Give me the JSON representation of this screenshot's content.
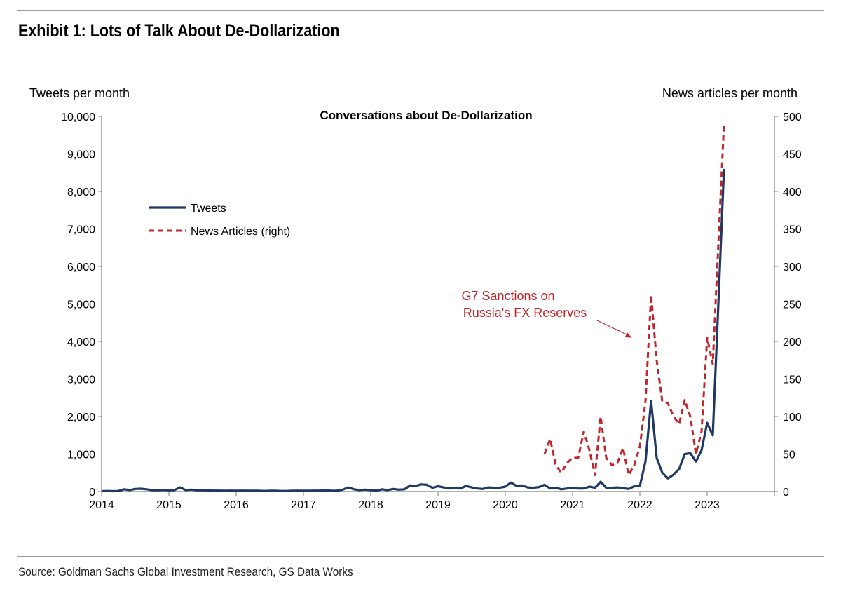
{
  "header": {
    "title": "Exhibit 1: Lots of Talk About De-Dollarization"
  },
  "footer": {
    "source": "Source: Goldman Sachs Global Investment Research, GS Data Works"
  },
  "chart_data": {
    "type": "line",
    "title": "Conversations about De-Dollarization",
    "ylabel_left": "Tweets per month",
    "ylabel_right": "News articles per month",
    "xlim": [
      2014,
      2024
    ],
    "ylim_left": [
      0,
      10000
    ],
    "ylim_right": [
      0,
      500
    ],
    "x_ticks": [
      "2014",
      "2015",
      "2016",
      "2017",
      "2018",
      "2019",
      "2020",
      "2021",
      "2022",
      "2023"
    ],
    "y_ticks_left": [
      "0",
      "1,000",
      "2,000",
      "3,000",
      "4,000",
      "5,000",
      "6,000",
      "7,000",
      "8,000",
      "9,000",
      "10,000"
    ],
    "y_ticks_right": [
      "0",
      "50",
      "100",
      "150",
      "200",
      "250",
      "300",
      "350",
      "400",
      "450",
      "500"
    ],
    "grid": false,
    "legend_position": "upper-left",
    "colors": {
      "tweets": "#1f3864",
      "news": "#c0272d",
      "annotation": "#c0272d"
    },
    "annotation": {
      "lines": [
        "G7 Sanctions on",
        "Russia's FX Reserves"
      ],
      "x": 2021.88,
      "y_right": 205
    },
    "series": [
      {
        "name": "Tweets",
        "axis": "left",
        "style": "solid",
        "x": [
          2014.0,
          2014.083,
          2014.167,
          2014.25,
          2014.333,
          2014.417,
          2014.5,
          2014.583,
          2014.667,
          2014.75,
          2014.833,
          2014.917,
          2015.0,
          2015.083,
          2015.167,
          2015.25,
          2015.333,
          2015.417,
          2015.5,
          2015.583,
          2015.667,
          2015.75,
          2015.833,
          2015.917,
          2016.0,
          2016.083,
          2016.167,
          2016.25,
          2016.333,
          2016.417,
          2016.5,
          2016.583,
          2016.667,
          2016.75,
          2016.833,
          2016.917,
          2017.0,
          2017.083,
          2017.167,
          2017.25,
          2017.333,
          2017.417,
          2017.5,
          2017.583,
          2017.667,
          2017.75,
          2017.833,
          2017.917,
          2018.0,
          2018.083,
          2018.167,
          2018.25,
          2018.333,
          2018.417,
          2018.5,
          2018.583,
          2018.667,
          2018.75,
          2018.833,
          2018.917,
          2019.0,
          2019.083,
          2019.167,
          2019.25,
          2019.333,
          2019.417,
          2019.5,
          2019.583,
          2019.667,
          2019.75,
          2019.833,
          2019.917,
          2020.0,
          2020.083,
          2020.167,
          2020.25,
          2020.333,
          2020.417,
          2020.5,
          2020.583,
          2020.667,
          2020.75,
          2020.833,
          2020.917,
          2021.0,
          2021.083,
          2021.167,
          2021.25,
          2021.333,
          2021.417,
          2021.5,
          2021.583,
          2021.667,
          2021.75,
          2021.833,
          2021.917,
          2022.0,
          2022.083,
          2022.167,
          2022.25,
          2022.333,
          2022.417,
          2022.5,
          2022.583,
          2022.667,
          2022.75,
          2022.833,
          2022.917,
          2023.0,
          2023.083,
          2023.167,
          2023.25
        ],
        "y": [
          10,
          15,
          10,
          15,
          60,
          40,
          70,
          75,
          60,
          40,
          35,
          45,
          35,
          40,
          110,
          40,
          50,
          35,
          35,
          30,
          25,
          25,
          20,
          25,
          20,
          25,
          20,
          20,
          20,
          15,
          20,
          20,
          15,
          15,
          20,
          20,
          20,
          20,
          25,
          25,
          30,
          20,
          25,
          50,
          110,
          60,
          40,
          50,
          40,
          20,
          60,
          40,
          70,
          50,
          60,
          160,
          150,
          190,
          180,
          100,
          140,
          110,
          80,
          90,
          80,
          150,
          110,
          80,
          70,
          110,
          100,
          100,
          130,
          240,
          150,
          160,
          110,
          100,
          120,
          180,
          80,
          100,
          60,
          80,
          100,
          80,
          80,
          130,
          100,
          260,
          100,
          100,
          110,
          90,
          70,
          140,
          150,
          800,
          2420,
          900,
          500,
          350,
          450,
          600,
          1000,
          1020,
          800,
          1100,
          1830,
          1500,
          5000,
          8600
        ]
      },
      {
        "name": "News Articles (right)",
        "axis": "right",
        "style": "dashed",
        "x": [
          2020.583,
          2020.667,
          2020.75,
          2020.833,
          2020.917,
          2021.0,
          2021.083,
          2021.167,
          2021.25,
          2021.333,
          2021.417,
          2021.5,
          2021.583,
          2021.667,
          2021.75,
          2021.833,
          2021.917,
          2022.0,
          2022.083,
          2022.167,
          2022.25,
          2022.333,
          2022.417,
          2022.5,
          2022.583,
          2022.667,
          2022.75,
          2022.833,
          2022.917,
          2023.0,
          2023.083,
          2023.167,
          2023.25
        ],
        "y": [
          50,
          70,
          35,
          25,
          38,
          45,
          45,
          80,
          55,
          22,
          100,
          45,
          35,
          38,
          58,
          22,
          35,
          60,
          120,
          262,
          175,
          120,
          118,
          100,
          90,
          122,
          100,
          50,
          80,
          205,
          170,
          330,
          490
        ]
      }
    ]
  }
}
